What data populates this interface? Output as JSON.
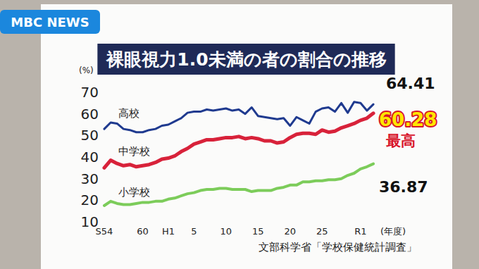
{
  "header": {
    "logo": "MBC NEWS"
  },
  "chart_data": {
    "type": "line",
    "title": "裸眼視力1.0未満の者の割合の推移",
    "y_label": "(%)",
    "x_label": "(年度)",
    "source": "文部科学省「学校保健統計調査」",
    "categories": [
      "S54",
      null,
      null,
      null,
      null,
      null,
      "60",
      null,
      null,
      null,
      "H1",
      null,
      null,
      null,
      "5",
      null,
      null,
      null,
      null,
      "10",
      null,
      null,
      null,
      null,
      "15",
      null,
      null,
      null,
      null,
      "20",
      null,
      null,
      null,
      null,
      "25",
      null,
      null,
      null,
      null,
      null,
      "R1",
      null,
      null
    ],
    "ylim": [
      10,
      70
    ],
    "yticks": [
      10,
      20,
      30,
      40,
      50,
      60,
      70
    ],
    "grid": false,
    "series": [
      {
        "name": "高校",
        "color": "#1f3a8f",
        "values": [
          53.0,
          56.0,
          55.5,
          53.0,
          52.5,
          51.5,
          51.5,
          52.5,
          53.0,
          54.5,
          55.0,
          56.5,
          58.0,
          60.5,
          61.0,
          61.0,
          62.0,
          61.5,
          62.0,
          62.5,
          61.5,
          62.0,
          60.0,
          63.0,
          59.0,
          58.5,
          58.0,
          57.5,
          58.0,
          54.5,
          58.5,
          57.0,
          55.5,
          61.0,
          62.5,
          63.0,
          61.0,
          65.0,
          60.5,
          65.5,
          65.0,
          61.5,
          64.41
        ],
        "value_labels": [
          null,
          null,
          null,
          null,
          null,
          null,
          null,
          null,
          null,
          null,
          null,
          null,
          null,
          null,
          null,
          null,
          null,
          null,
          null,
          null,
          null,
          null,
          null,
          null,
          null,
          null,
          null,
          null,
          null,
          null,
          null,
          null,
          null,
          null,
          null,
          null,
          null,
          null,
          null,
          null,
          null,
          null,
          "64.41"
        ]
      },
      {
        "name": "中学校",
        "color": "#d8223a",
        "values": [
          35.0,
          38.5,
          37.0,
          36.0,
          36.5,
          35.5,
          36.0,
          36.5,
          37.5,
          39.0,
          39.5,
          40.5,
          42.5,
          44.0,
          46.0,
          47.0,
          48.0,
          48.0,
          48.5,
          49.0,
          49.0,
          49.5,
          48.5,
          49.0,
          48.5,
          47.5,
          47.5,
          46.5,
          47.0,
          49.0,
          50.5,
          51.0,
          51.0,
          50.5,
          52.5,
          51.5,
          52.0,
          53.5,
          54.5,
          55.5,
          57.0,
          58.0,
          60.28
        ],
        "value_labels": [
          null,
          null,
          null,
          null,
          null,
          null,
          null,
          null,
          null,
          null,
          null,
          null,
          null,
          null,
          null,
          null,
          null,
          null,
          null,
          null,
          null,
          null,
          null,
          null,
          null,
          null,
          null,
          null,
          null,
          null,
          null,
          null,
          null,
          null,
          null,
          null,
          null,
          null,
          null,
          null,
          null,
          null,
          "60.28"
        ]
      },
      {
        "name": "小学校",
        "color": "#7ccc5a",
        "values": [
          17.5,
          19.5,
          18.5,
          18.0,
          18.0,
          18.5,
          19.0,
          19.0,
          19.5,
          19.5,
          20.5,
          21.0,
          22.0,
          23.0,
          23.5,
          24.5,
          25.0,
          25.0,
          25.5,
          25.5,
          25.0,
          25.0,
          25.0,
          24.0,
          24.5,
          24.5,
          24.5,
          25.5,
          26.0,
          27.0,
          27.0,
          28.5,
          28.5,
          29.0,
          29.0,
          29.5,
          29.5,
          30.0,
          31.5,
          32.5,
          34.5,
          35.5,
          36.87
        ],
        "value_labels": [
          null,
          null,
          null,
          null,
          null,
          null,
          null,
          null,
          null,
          null,
          null,
          null,
          null,
          null,
          null,
          null,
          null,
          null,
          null,
          null,
          null,
          null,
          null,
          null,
          null,
          null,
          null,
          null,
          null,
          null,
          null,
          null,
          null,
          null,
          null,
          null,
          null,
          null,
          null,
          null,
          null,
          null,
          "36.87"
        ]
      }
    ],
    "annotations": [
      {
        "text": "最高",
        "series": "中学校"
      }
    ]
  }
}
